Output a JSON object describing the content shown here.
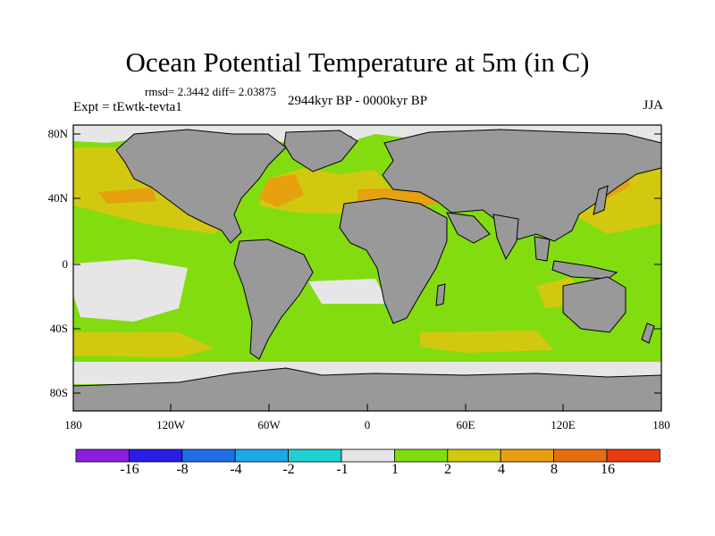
{
  "title": "Ocean Potential Temperature at 5m (in C)",
  "stats": "rmsd= 2.3442 diff= 2.03875",
  "experiment": "Expt = tEwtk-tevta1",
  "period": "2944kyr BP - 0000kyr BP",
  "season": "JJA",
  "lat_ticks": [
    "80N",
    "40N",
    "0",
    "40S",
    "80S"
  ],
  "lon_ticks": [
    "180",
    "120W",
    "60W",
    "0",
    "60E",
    "120E",
    "180"
  ],
  "colorbar": {
    "labels": [
      "-16",
      "-8",
      "-4",
      "-2",
      "-1",
      "1",
      "2",
      "4",
      "8",
      "16"
    ],
    "colors": [
      "#8a1ee0",
      "#2a1ee6",
      "#1e6ee6",
      "#1ea8e6",
      "#1ed2d2",
      "#e6e6e6",
      "#82dc10",
      "#d2c810",
      "#e6a010",
      "#e66e10",
      "#e63c10"
    ]
  },
  "palette": {
    "land": "#999999",
    "neutral": "#e6e6e6",
    "warm1": "#82dc10",
    "warm2": "#d2c810",
    "warm3": "#e6a010",
    "warm4": "#e66e10",
    "cool": "#1ed2d2"
  }
}
